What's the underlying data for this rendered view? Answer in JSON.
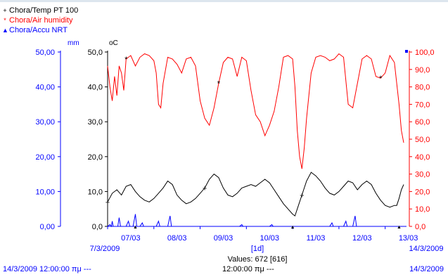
{
  "legend": [
    {
      "name": "Chora/Temp PT 100",
      "color": "#000000",
      "marker": "+"
    },
    {
      "name": "Chora/Air humidity",
      "color": "#ff0000",
      "marker": "*"
    },
    {
      "name": "Chora/Accu NRT",
      "color": "#0000ff",
      "marker": "▲"
    }
  ],
  "chart_data": {
    "type": "line",
    "x_tick_labels": [
      "07/03",
      "08/03",
      "09/03",
      "10/03",
      "11/03",
      "12/03",
      "13/03"
    ],
    "x_start_label": "7/3/2009",
    "x_end_label": "14/3/2009",
    "x_interval_label": "[1d]",
    "values_label": "Values: 672 [616]",
    "colors": {
      "temp": "#000000",
      "humidity": "#ff0000",
      "rain": "#0000ff"
    },
    "axes": {
      "rain_mm": {
        "unit": "mm",
        "ylim": [
          0,
          50
        ],
        "ticks": [
          "50,00",
          "40,00",
          "30,00",
          "20,00",
          "10,00",
          "0,00"
        ],
        "color": "#0000ff"
      },
      "temp_c": {
        "unit": "oC",
        "ylim": [
          0,
          50
        ],
        "ticks": [
          "50,0",
          "40,0",
          "30,0",
          "20,0",
          "10,0",
          "0,0"
        ],
        "color": "#000000"
      },
      "humidity_pct": {
        "unit": "",
        "ylim": [
          0,
          100
        ],
        "ticks": [
          "100,0",
          "90,0",
          "80,0",
          "70,0",
          "60,0",
          "50,0",
          "40,0",
          "30,0",
          "20,0",
          "10,0",
          "0,0"
        ],
        "color": "#ff0000"
      }
    },
    "series": [
      {
        "name": "Chora/Temp PT 100",
        "axis": "temp_c",
        "points": [
          [
            0.0,
            7.0
          ],
          [
            0.1,
            9.5
          ],
          [
            0.2,
            10.5
          ],
          [
            0.3,
            9.0
          ],
          [
            0.4,
            11.5
          ],
          [
            0.5,
            12.0
          ],
          [
            0.6,
            10.0
          ],
          [
            0.7,
            8.5
          ],
          [
            0.8,
            7.5
          ],
          [
            0.9,
            7.0
          ],
          [
            1.0,
            8.0
          ],
          [
            1.1,
            9.5
          ],
          [
            1.2,
            11.0
          ],
          [
            1.3,
            13.0
          ],
          [
            1.4,
            12.0
          ],
          [
            1.5,
            9.0
          ],
          [
            1.6,
            7.5
          ],
          [
            1.7,
            6.5
          ],
          [
            1.8,
            7.0
          ],
          [
            1.9,
            8.0
          ],
          [
            2.0,
            9.5
          ],
          [
            2.1,
            11.0
          ],
          [
            2.2,
            13.5
          ],
          [
            2.3,
            15.0
          ],
          [
            2.4,
            14.0
          ],
          [
            2.5,
            11.0
          ],
          [
            2.6,
            9.0
          ],
          [
            2.7,
            8.5
          ],
          [
            2.8,
            9.5
          ],
          [
            2.9,
            11.0
          ],
          [
            3.0,
            11.5
          ],
          [
            3.1,
            12.0
          ],
          [
            3.2,
            11.5
          ],
          [
            3.3,
            12.5
          ],
          [
            3.4,
            13.5
          ],
          [
            3.5,
            12.5
          ],
          [
            3.6,
            10.5
          ],
          [
            3.7,
            8.5
          ],
          [
            3.8,
            6.5
          ],
          [
            3.9,
            5.0
          ],
          [
            4.0,
            3.5
          ],
          [
            4.05,
            3.0
          ],
          [
            4.1,
            5.0
          ],
          [
            4.2,
            9.0
          ],
          [
            4.3,
            13.0
          ],
          [
            4.4,
            15.5
          ],
          [
            4.5,
            14.5
          ],
          [
            4.6,
            13.0
          ],
          [
            4.7,
            11.0
          ],
          [
            4.8,
            9.5
          ],
          [
            4.9,
            9.0
          ],
          [
            5.0,
            10.0
          ],
          [
            5.1,
            11.5
          ],
          [
            5.2,
            13.0
          ],
          [
            5.3,
            12.5
          ],
          [
            5.4,
            10.5
          ],
          [
            5.5,
            12.0
          ],
          [
            5.6,
            13.0
          ],
          [
            5.7,
            12.0
          ],
          [
            5.8,
            9.5
          ],
          [
            5.9,
            7.5
          ],
          [
            6.0,
            6.0
          ],
          [
            6.1,
            5.5
          ],
          [
            6.2,
            6.0
          ],
          [
            6.25,
            6.0
          ],
          [
            6.3,
            8.0
          ],
          [
            6.35,
            10.5
          ],
          [
            6.4,
            12.0
          ]
        ]
      },
      {
        "name": "Chora/Air humidity",
        "axis": "humidity_pct",
        "points": [
          [
            0.0,
            92
          ],
          [
            0.05,
            80
          ],
          [
            0.1,
            72
          ],
          [
            0.15,
            86
          ],
          [
            0.2,
            75
          ],
          [
            0.25,
            92
          ],
          [
            0.3,
            88
          ],
          [
            0.35,
            78
          ],
          [
            0.4,
            96
          ],
          [
            0.5,
            98
          ],
          [
            0.6,
            92
          ],
          [
            0.7,
            97
          ],
          [
            0.8,
            99
          ],
          [
            0.9,
            98
          ],
          [
            1.0,
            95
          ],
          [
            1.05,
            88
          ],
          [
            1.1,
            70
          ],
          [
            1.15,
            68
          ],
          [
            1.2,
            82
          ],
          [
            1.3,
            97
          ],
          [
            1.4,
            96
          ],
          [
            1.5,
            93
          ],
          [
            1.6,
            88
          ],
          [
            1.7,
            96
          ],
          [
            1.8,
            97
          ],
          [
            1.9,
            92
          ],
          [
            2.0,
            72
          ],
          [
            2.1,
            62
          ],
          [
            2.2,
            58
          ],
          [
            2.3,
            68
          ],
          [
            2.4,
            82
          ],
          [
            2.5,
            94
          ],
          [
            2.6,
            97
          ],
          [
            2.7,
            96
          ],
          [
            2.8,
            86
          ],
          [
            2.9,
            97
          ],
          [
            3.0,
            95
          ],
          [
            3.1,
            78
          ],
          [
            3.2,
            64
          ],
          [
            3.3,
            60
          ],
          [
            3.4,
            52
          ],
          [
            3.5,
            58
          ],
          [
            3.6,
            66
          ],
          [
            3.7,
            80
          ],
          [
            3.8,
            97
          ],
          [
            3.9,
            98
          ],
          [
            4.0,
            96
          ],
          [
            4.05,
            80
          ],
          [
            4.1,
            55
          ],
          [
            4.15,
            40
          ],
          [
            4.2,
            33
          ],
          [
            4.25,
            45
          ],
          [
            4.3,
            62
          ],
          [
            4.4,
            88
          ],
          [
            4.5,
            97
          ],
          [
            4.6,
            98
          ],
          [
            4.7,
            97
          ],
          [
            4.8,
            95
          ],
          [
            4.9,
            96
          ],
          [
            5.0,
            99
          ],
          [
            5.1,
            97
          ],
          [
            5.2,
            70
          ],
          [
            5.3,
            68
          ],
          [
            5.4,
            82
          ],
          [
            5.5,
            96
          ],
          [
            5.6,
            98
          ],
          [
            5.7,
            96
          ],
          [
            5.8,
            86
          ],
          [
            5.9,
            85
          ],
          [
            6.0,
            88
          ],
          [
            6.1,
            98
          ],
          [
            6.2,
            94
          ],
          [
            6.3,
            70
          ],
          [
            6.35,
            55
          ],
          [
            6.4,
            48
          ]
        ]
      },
      {
        "name": "Chora/Accu NRT",
        "axis": "rain_mm",
        "points": [
          [
            0.0,
            0
          ],
          [
            0.05,
            0.5
          ],
          [
            0.08,
            0
          ],
          [
            0.1,
            1.5
          ],
          [
            0.12,
            0
          ],
          [
            0.22,
            0
          ],
          [
            0.25,
            2.5
          ],
          [
            0.28,
            0
          ],
          [
            0.4,
            0
          ],
          [
            0.45,
            1.5
          ],
          [
            0.48,
            0
          ],
          [
            0.55,
            0
          ],
          [
            0.6,
            3.5
          ],
          [
            0.63,
            0
          ],
          [
            0.7,
            0
          ],
          [
            0.75,
            1.0
          ],
          [
            0.78,
            0
          ],
          [
            1.05,
            0
          ],
          [
            1.1,
            1.5
          ],
          [
            1.13,
            0
          ],
          [
            1.3,
            0
          ],
          [
            1.35,
            3.0
          ],
          [
            1.38,
            0
          ],
          [
            2.85,
            0
          ],
          [
            2.9,
            0.5
          ],
          [
            2.93,
            0
          ],
          [
            3.5,
            0
          ],
          [
            3.55,
            0.5
          ],
          [
            3.58,
            0
          ],
          [
            4.8,
            0
          ],
          [
            4.85,
            1.0
          ],
          [
            4.88,
            0
          ],
          [
            5.1,
            0
          ],
          [
            5.15,
            1.5
          ],
          [
            5.18,
            0
          ],
          [
            5.3,
            0
          ],
          [
            5.35,
            3.0
          ],
          [
            5.38,
            0
          ],
          [
            6.4,
            0
          ]
        ]
      }
    ]
  },
  "footer": {
    "left": "14/3/2009 12:00:00 πμ   ---",
    "center": "12:00:00 πμ   ---",
    "right": "14/3/2009"
  }
}
